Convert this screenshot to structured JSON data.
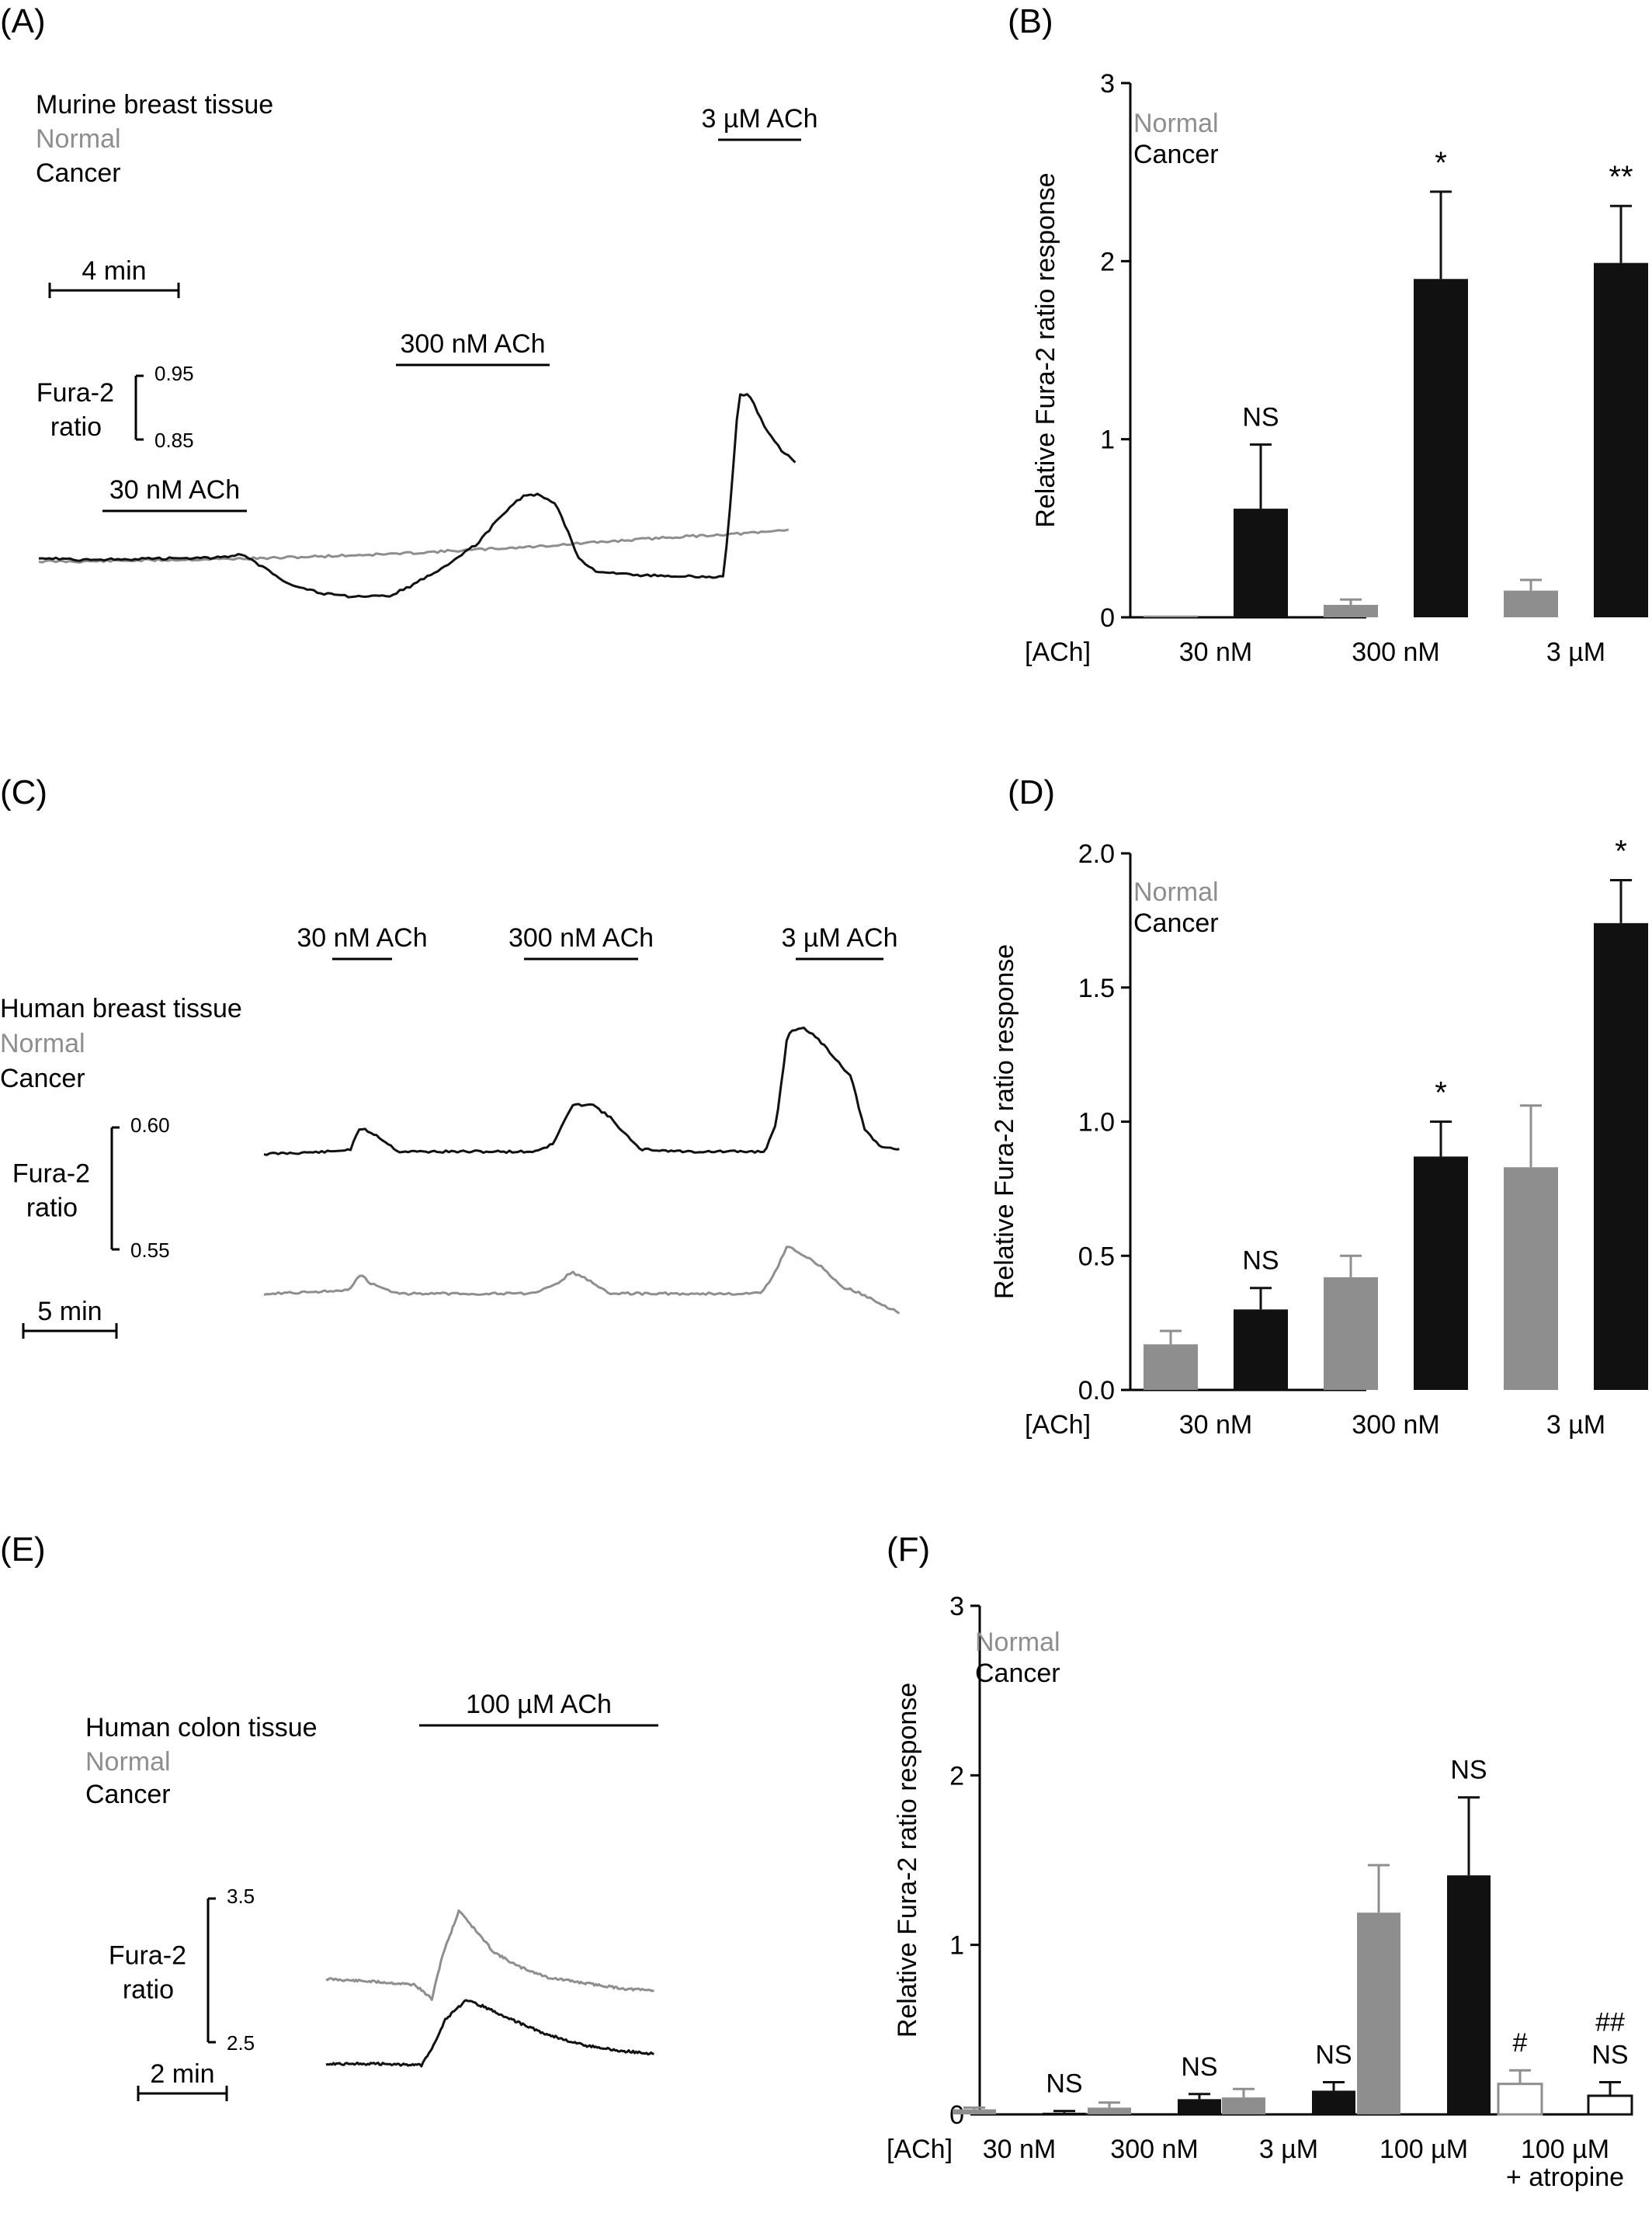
{
  "colors": {
    "normal": "#8e8e8e",
    "cancer": "#111111",
    "axis": "#000000",
    "empty_fill": "#ffffff"
  },
  "chart_data": [
    {
      "panel": "(A)",
      "type": "line",
      "labels": {
        "tissue": "Murine breast tissue",
        "normal": "Normal",
        "cancer": "Cancer"
      },
      "stimuli": [
        "30 nM ACh",
        "300 nM ACh",
        "3 µM ACh"
      ],
      "time_scalebar": "4 min",
      "ratio_scalebar": {
        "label": [
          "Fura-2",
          "ratio"
        ],
        "top": "0.95",
        "bottom": "0.85"
      },
      "series": [
        {
          "name": "Normal",
          "color_key": "normal",
          "points": [
            [
              0,
              0.797
            ],
            [
              2,
              0.797
            ],
            [
              4,
              0.798
            ],
            [
              6,
              0.799
            ],
            [
              8,
              0.8
            ],
            [
              10,
              0.801
            ],
            [
              12,
              0.803
            ],
            [
              14,
              0.805
            ],
            [
              16,
              0.807
            ],
            [
              18,
              0.81
            ],
            [
              20,
              0.813
            ],
            [
              22,
              0.816
            ],
            [
              24,
              0.82
            ],
            [
              26,
              0.824
            ],
            [
              28,
              0.828
            ],
            [
              30,
              0.831
            ],
            [
              32,
              0.834
            ],
            [
              33.3,
              0.838
            ]
          ]
        },
        {
          "name": "Cancer",
          "color_key": "cancer",
          "points": [
            [
              0,
              0.802
            ],
            [
              2,
              0.799
            ],
            [
              4,
              0.8
            ],
            [
              6,
              0.801
            ],
            [
              8,
              0.802
            ],
            [
              9.0,
              0.806
            ],
            [
              10.0,
              0.789
            ],
            [
              11.0,
              0.77
            ],
            [
              12.5,
              0.756
            ],
            [
              14.0,
              0.751
            ],
            [
              15.5,
              0.752
            ],
            [
              16.5,
              0.765
            ],
            [
              18.0,
              0.79
            ],
            [
              19.5,
              0.82
            ],
            [
              20.5,
              0.855
            ],
            [
              21.5,
              0.881
            ],
            [
              22.2,
              0.884
            ],
            [
              23.0,
              0.87
            ],
            [
              24.0,
              0.8
            ],
            [
              24.7,
              0.785
            ],
            [
              26,
              0.78
            ],
            [
              28,
              0.778
            ],
            [
              30,
              0.777
            ],
            [
              30.4,
              0.778
            ],
            [
              30.6,
              0.83
            ],
            [
              31.1,
              1.013
            ],
            [
              31.6,
              1.01
            ],
            [
              32.2,
              0.972
            ],
            [
              33.0,
              0.94
            ],
            [
              33.6,
              0.925
            ]
          ]
        }
      ]
    },
    {
      "panel": "(B)",
      "type": "bar",
      "ylabel": "Relative Fura-2 ratio response",
      "ylim": [
        0,
        3
      ],
      "yticks": [
        "0",
        "1",
        "2",
        "3"
      ],
      "xlabel_prefix": "[ACh]",
      "categories": [
        "30 nM",
        "300 nM",
        "3 µM"
      ],
      "legend": [
        "Normal",
        "Cancer"
      ],
      "series": [
        {
          "name": "Normal",
          "values": [
            0.01,
            0.07,
            0.15
          ],
          "errors": [
            0.0,
            0.03,
            0.06
          ]
        },
        {
          "name": "Cancer",
          "values": [
            0.61,
            1.9,
            1.99
          ],
          "errors": [
            0.36,
            0.49,
            0.32
          ]
        }
      ],
      "annotations": [
        "NS",
        "*",
        "**"
      ]
    },
    {
      "panel": "(C)",
      "type": "line",
      "labels": {
        "tissue": "Human breast tissue",
        "normal": "Normal",
        "cancer": "Cancer"
      },
      "stimuli": [
        "30 nM ACh",
        "300 nM ACh",
        "3 µM ACh"
      ],
      "time_scalebar": "5 min",
      "ratio_scalebar": {
        "label": [
          "Fura-2",
          "ratio"
        ],
        "top": "0.60",
        "bottom": "0.55"
      },
      "series": [
        {
          "name": "Cancer",
          "color_key": "cancer",
          "points": [
            [
              0,
              0.588
            ],
            [
              3.5,
              0.589
            ],
            [
              4.5,
              0.59
            ],
            [
              5.0,
              0.599
            ],
            [
              5.8,
              0.596
            ],
            [
              7.0,
              0.589
            ],
            [
              10,
              0.589
            ],
            [
              14.0,
              0.589
            ],
            [
              15.0,
              0.592
            ],
            [
              16.0,
              0.608
            ],
            [
              17.0,
              0.609
            ],
            [
              18.0,
              0.603
            ],
            [
              19.5,
              0.59
            ],
            [
              22,
              0.589
            ],
            [
              26.0,
              0.589
            ],
            [
              26.6,
              0.6
            ],
            [
              27.2,
              0.638
            ],
            [
              28.0,
              0.641
            ],
            [
              29.0,
              0.634
            ],
            [
              30.5,
              0.62
            ],
            [
              31.2,
              0.598
            ],
            [
              32.0,
              0.591
            ],
            [
              33.0,
              0.59
            ]
          ]
        },
        {
          "name": "Normal",
          "color_key": "normal",
          "points": [
            [
              0,
              0.53
            ],
            [
              3.5,
              0.531
            ],
            [
              4.5,
              0.532
            ],
            [
              5.0,
              0.538
            ],
            [
              5.6,
              0.534
            ],
            [
              7.0,
              0.53
            ],
            [
              10,
              0.53
            ],
            [
              14.0,
              0.53
            ],
            [
              15.0,
              0.533
            ],
            [
              16.0,
              0.539
            ],
            [
              17.0,
              0.535
            ],
            [
              18.0,
              0.53
            ],
            [
              22,
              0.53
            ],
            [
              25.8,
              0.53
            ],
            [
              26.5,
              0.538
            ],
            [
              27.2,
              0.55
            ],
            [
              28.0,
              0.546
            ],
            [
              29.0,
              0.541
            ],
            [
              30.0,
              0.533
            ],
            [
              31.0,
              0.53
            ],
            [
              32.0,
              0.526
            ],
            [
              33.0,
              0.522
            ]
          ]
        }
      ]
    },
    {
      "panel": "(D)",
      "type": "bar",
      "ylabel": "Relative Fura-2 ratio response",
      "ylim": [
        0,
        2.0
      ],
      "yticks": [
        "0.0",
        "0.5",
        "1.0",
        "1.5",
        "2.0"
      ],
      "xlabel_prefix": "[ACh]",
      "categories": [
        "30 nM",
        "300 nM",
        "3 µM"
      ],
      "legend": [
        "Normal",
        "Cancer"
      ],
      "series": [
        {
          "name": "Normal",
          "values": [
            0.17,
            0.42,
            0.83
          ],
          "errors": [
            0.05,
            0.08,
            0.23
          ]
        },
        {
          "name": "Cancer",
          "values": [
            0.3,
            0.87,
            1.74
          ],
          "errors": [
            0.08,
            0.13,
            0.16
          ]
        }
      ],
      "annotations": [
        "NS",
        "*",
        "*"
      ]
    },
    {
      "panel": "(E)",
      "type": "line",
      "labels": {
        "tissue": "Human colon tissue",
        "normal": "Normal",
        "cancer": "Cancer"
      },
      "stimuli": [
        "100 µM ACh"
      ],
      "time_scalebar": "2 min",
      "ratio_scalebar": {
        "label": [
          "Fura-2",
          "ratio"
        ],
        "top": "3.5",
        "bottom": "2.5"
      },
      "series": [
        {
          "name": "Normal",
          "color_key": "normal",
          "points": [
            [
              0,
              2.94
            ],
            [
              1.5,
              2.92
            ],
            [
              2.6,
              2.9
            ],
            [
              3.1,
              2.8
            ],
            [
              3.4,
              3.1
            ],
            [
              3.9,
              3.42
            ],
            [
              4.3,
              3.3
            ],
            [
              4.9,
              3.13
            ],
            [
              5.6,
              3.03
            ],
            [
              6.5,
              2.95
            ],
            [
              7.6,
              2.91
            ],
            [
              8.8,
              2.87
            ],
            [
              9.6,
              2.86
            ]
          ]
        },
        {
          "name": "Cancer",
          "color_key": "cancer",
          "points": [
            [
              0,
              2.35
            ],
            [
              1.5,
              2.35
            ],
            [
              2.8,
              2.34
            ],
            [
              3.1,
              2.46
            ],
            [
              3.5,
              2.66
            ],
            [
              4.1,
              2.79
            ],
            [
              4.6,
              2.75
            ],
            [
              5.4,
              2.66
            ],
            [
              6.4,
              2.56
            ],
            [
              7.5,
              2.48
            ],
            [
              8.6,
              2.44
            ],
            [
              9.6,
              2.42
            ]
          ]
        }
      ]
    },
    {
      "panel": "(F)",
      "type": "bar",
      "ylabel": "Relative Fura-2 ratio response",
      "ylim": [
        0,
        3
      ],
      "yticks": [
        "0",
        "1",
        "2",
        "3"
      ],
      "xlabel_prefix": "[ACh]",
      "categories": [
        "30 nM",
        "300 nM",
        "3 µM",
        "100 µM",
        "100 µM"
      ],
      "category_sublabels": [
        "",
        "",
        "",
        "",
        "+ atropine"
      ],
      "legend": [
        "Normal",
        "Cancer"
      ],
      "series": [
        {
          "name": "Normal",
          "values": [
            0.03,
            0.04,
            0.1,
            1.19,
            0.18
          ],
          "errors": [
            0.01,
            0.03,
            0.05,
            0.28,
            0.08
          ],
          "hollow": [
            false,
            false,
            false,
            false,
            true
          ]
        },
        {
          "name": "Cancer",
          "values": [
            0.01,
            0.09,
            0.14,
            1.41,
            0.11
          ],
          "errors": [
            0.01,
            0.03,
            0.05,
            0.46,
            0.08
          ],
          "hollow": [
            false,
            false,
            false,
            false,
            true
          ]
        }
      ],
      "annotations": [
        "NS",
        "NS",
        "NS",
        "NS",
        "NS"
      ],
      "extra_annotations": {
        "normal_atropine": "#",
        "cancer_atropine": "##"
      }
    }
  ]
}
